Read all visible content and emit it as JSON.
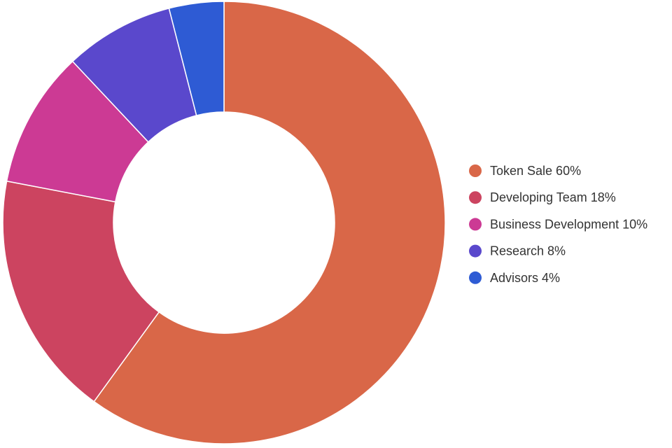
{
  "chart_data": {
    "type": "pie",
    "subtype": "donut",
    "categories": [
      "Token Sale",
      "Developing Team",
      "Business Development",
      "Research",
      "Advisors"
    ],
    "values": [
      60,
      18,
      10,
      8,
      4
    ],
    "unit": "%",
    "colors": [
      "#d96748",
      "#cc4460",
      "#cc3a94",
      "#5a48cc",
      "#2e5bd4"
    ],
    "legend": {
      "position": "right",
      "labels": [
        "Token Sale 60%",
        "Developing Team 18%",
        "Business Development 10%",
        "Research 8%",
        "Advisors 4%"
      ]
    },
    "title": ""
  }
}
